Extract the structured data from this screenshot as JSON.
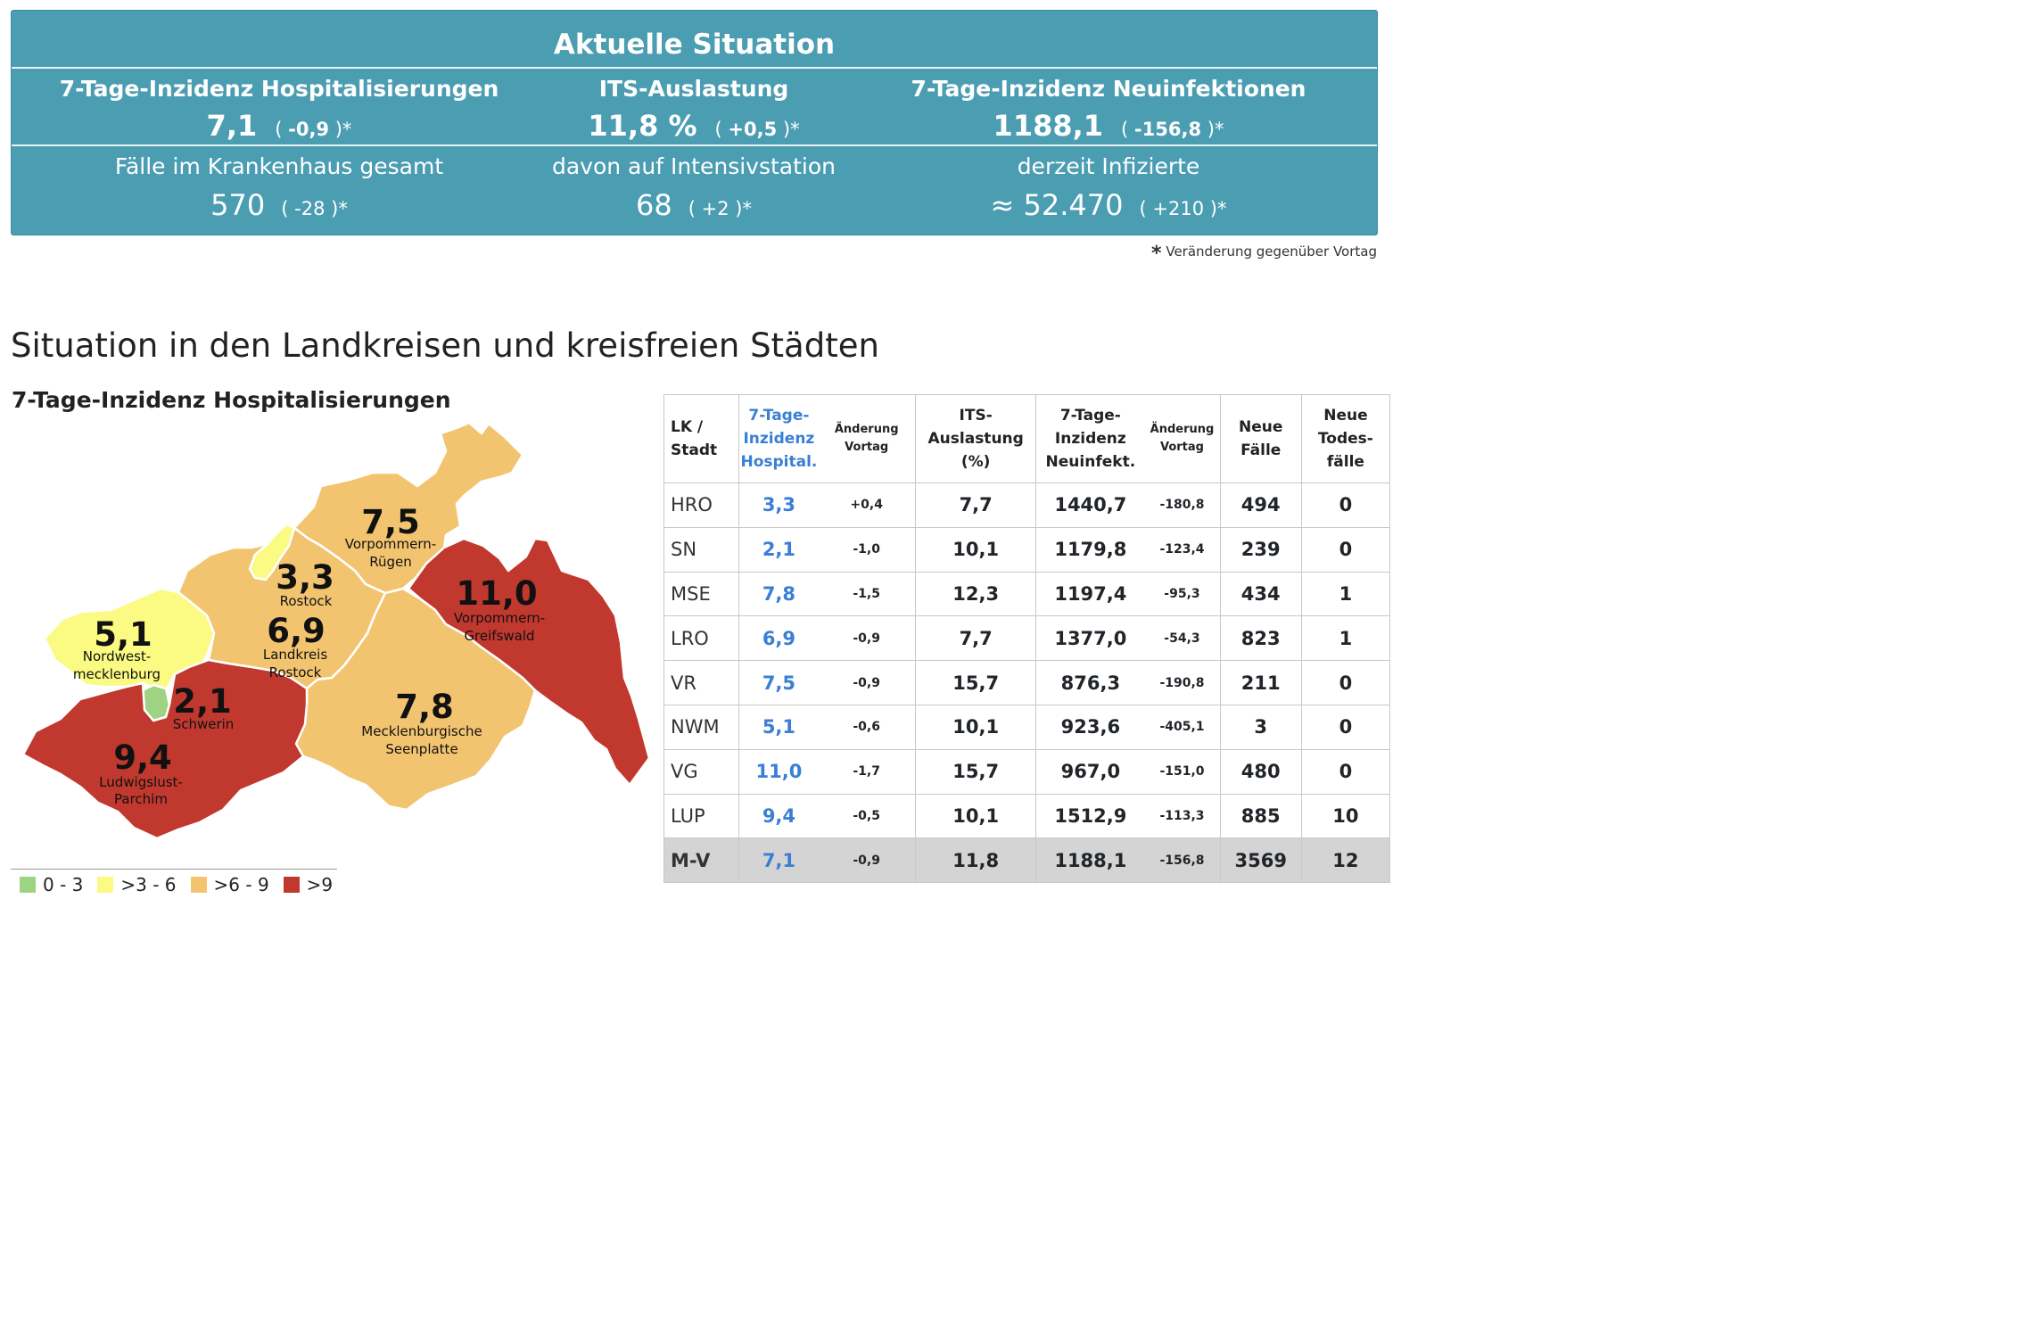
{
  "banner": {
    "title": "Aktuelle Situation",
    "kpis": [
      {
        "label": "7-Tage-Inzidenz Hospitalisierungen",
        "value": "7,1",
        "change": "-0,9"
      },
      {
        "label": "ITS-Auslastung",
        "value": "11,8 %",
        "change": "+0,5"
      },
      {
        "label": "7-Tage-Inzidenz Neuinfektionen",
        "value": "1188,1",
        "change": "-156,8"
      }
    ],
    "subs": [
      {
        "label": "Fälle im Krankenhaus gesamt",
        "value": "570",
        "change": "-28"
      },
      {
        "label": "davon auf Intensivstation",
        "value": "68",
        "change": "+2"
      },
      {
        "label": "derzeit Infizierte",
        "value": "≈ 52.470",
        "change": "+210"
      }
    ],
    "change_open": "(",
    "change_close": ")*"
  },
  "footnote": {
    "star": "*",
    "text": "Veränderung gegenüber Vortag"
  },
  "section_title": "Situation in den Landkreisen und kreisfreien Städten",
  "map": {
    "title": "7-Tage-Inzidenz Hospitalisierungen",
    "regions": [
      {
        "value": "7,5",
        "name_lines": [
          "Vorpommern-",
          "Rügen"
        ]
      },
      {
        "value": "3,3",
        "name_lines": [
          "Rostock"
        ]
      },
      {
        "value": "11,0",
        "name_lines": [
          "Vorpommern-",
          "Greifswald"
        ]
      },
      {
        "value": "5,1",
        "name_lines": [
          "Nordwest-",
          "mecklenburg"
        ]
      },
      {
        "value": "6,9",
        "name_lines": [
          "Landkreis",
          "Rostock"
        ]
      },
      {
        "value": "2,1",
        "name_lines": [
          "Schwerin"
        ]
      },
      {
        "value": "7,8",
        "name_lines": [
          "Mecklenburgische",
          "Seenplatte"
        ]
      },
      {
        "value": "9,4",
        "name_lines": [
          "Ludwigslust-",
          "Parchim"
        ]
      }
    ],
    "colors": {
      "green": "#9ed383",
      "yellow": "#fbfa83",
      "orange": "#f3c470",
      "red": "#c1382e"
    },
    "legend": [
      {
        "label": "0 - 3",
        "color": "#9ed383"
      },
      {
        "label": ">3 - 6",
        "color": "#fbfa83"
      },
      {
        "label": ">6 - 9",
        "color": "#f3c470"
      },
      {
        "label": ">9",
        "color": "#c1382e"
      }
    ]
  },
  "table": {
    "headers": {
      "lk": [
        "LK /",
        "Stadt"
      ],
      "hosp": [
        "7-Tage-",
        "Inzidenz",
        "Hospital."
      ],
      "hosp_change": [
        "Änderung",
        "Vortag"
      ],
      "its": [
        "ITS-",
        "Auslastung",
        "(%)"
      ],
      "neuinf": [
        "7-Tage-",
        "Inzidenz",
        "Neuinfekt."
      ],
      "neuinf_change": [
        "Änderung",
        "Vortag"
      ],
      "neue_faelle": [
        "Neue",
        "Fälle"
      ],
      "tode": [
        "Neue",
        "Todes-",
        "fälle"
      ]
    },
    "rows": [
      {
        "name": "HRO",
        "hosp": "3,3",
        "hosp_chg": "+0,4",
        "its": "7,7",
        "neuinf": "1440,7",
        "neuinf_chg": "-180,8",
        "faelle": "494",
        "tode": "0"
      },
      {
        "name": "SN",
        "hosp": "2,1",
        "hosp_chg": "-1,0",
        "its": "10,1",
        "neuinf": "1179,8",
        "neuinf_chg": "-123,4",
        "faelle": "239",
        "tode": "0"
      },
      {
        "name": "MSE",
        "hosp": "7,8",
        "hosp_chg": "-1,5",
        "its": "12,3",
        "neuinf": "1197,4",
        "neuinf_chg": "-95,3",
        "faelle": "434",
        "tode": "1"
      },
      {
        "name": "LRO",
        "hosp": "6,9",
        "hosp_chg": "-0,9",
        "its": "7,7",
        "neuinf": "1377,0",
        "neuinf_chg": "-54,3",
        "faelle": "823",
        "tode": "1"
      },
      {
        "name": "VR",
        "hosp": "7,5",
        "hosp_chg": "-0,9",
        "its": "15,7",
        "neuinf": "876,3",
        "neuinf_chg": "-190,8",
        "faelle": "211",
        "tode": "0"
      },
      {
        "name": "NWM",
        "hosp": "5,1",
        "hosp_chg": "-0,6",
        "its": "10,1",
        "neuinf": "923,6",
        "neuinf_chg": "-405,1",
        "faelle": "3",
        "tode": "0"
      },
      {
        "name": "VG",
        "hosp": "11,0",
        "hosp_chg": "-1,7",
        "its": "15,7",
        "neuinf": "967,0",
        "neuinf_chg": "-151,0",
        "faelle": "480",
        "tode": "0"
      },
      {
        "name": "LUP",
        "hosp": "9,4",
        "hosp_chg": "-0,5",
        "its": "10,1",
        "neuinf": "1512,9",
        "neuinf_chg": "-113,3",
        "faelle": "885",
        "tode": "10"
      }
    ],
    "total": {
      "name": "M-V",
      "hosp": "7,1",
      "hosp_chg": "-0,9",
      "its": "11,8",
      "neuinf": "1188,1",
      "neuinf_chg": "-156,8",
      "faelle": "3569",
      "tode": "12"
    }
  }
}
